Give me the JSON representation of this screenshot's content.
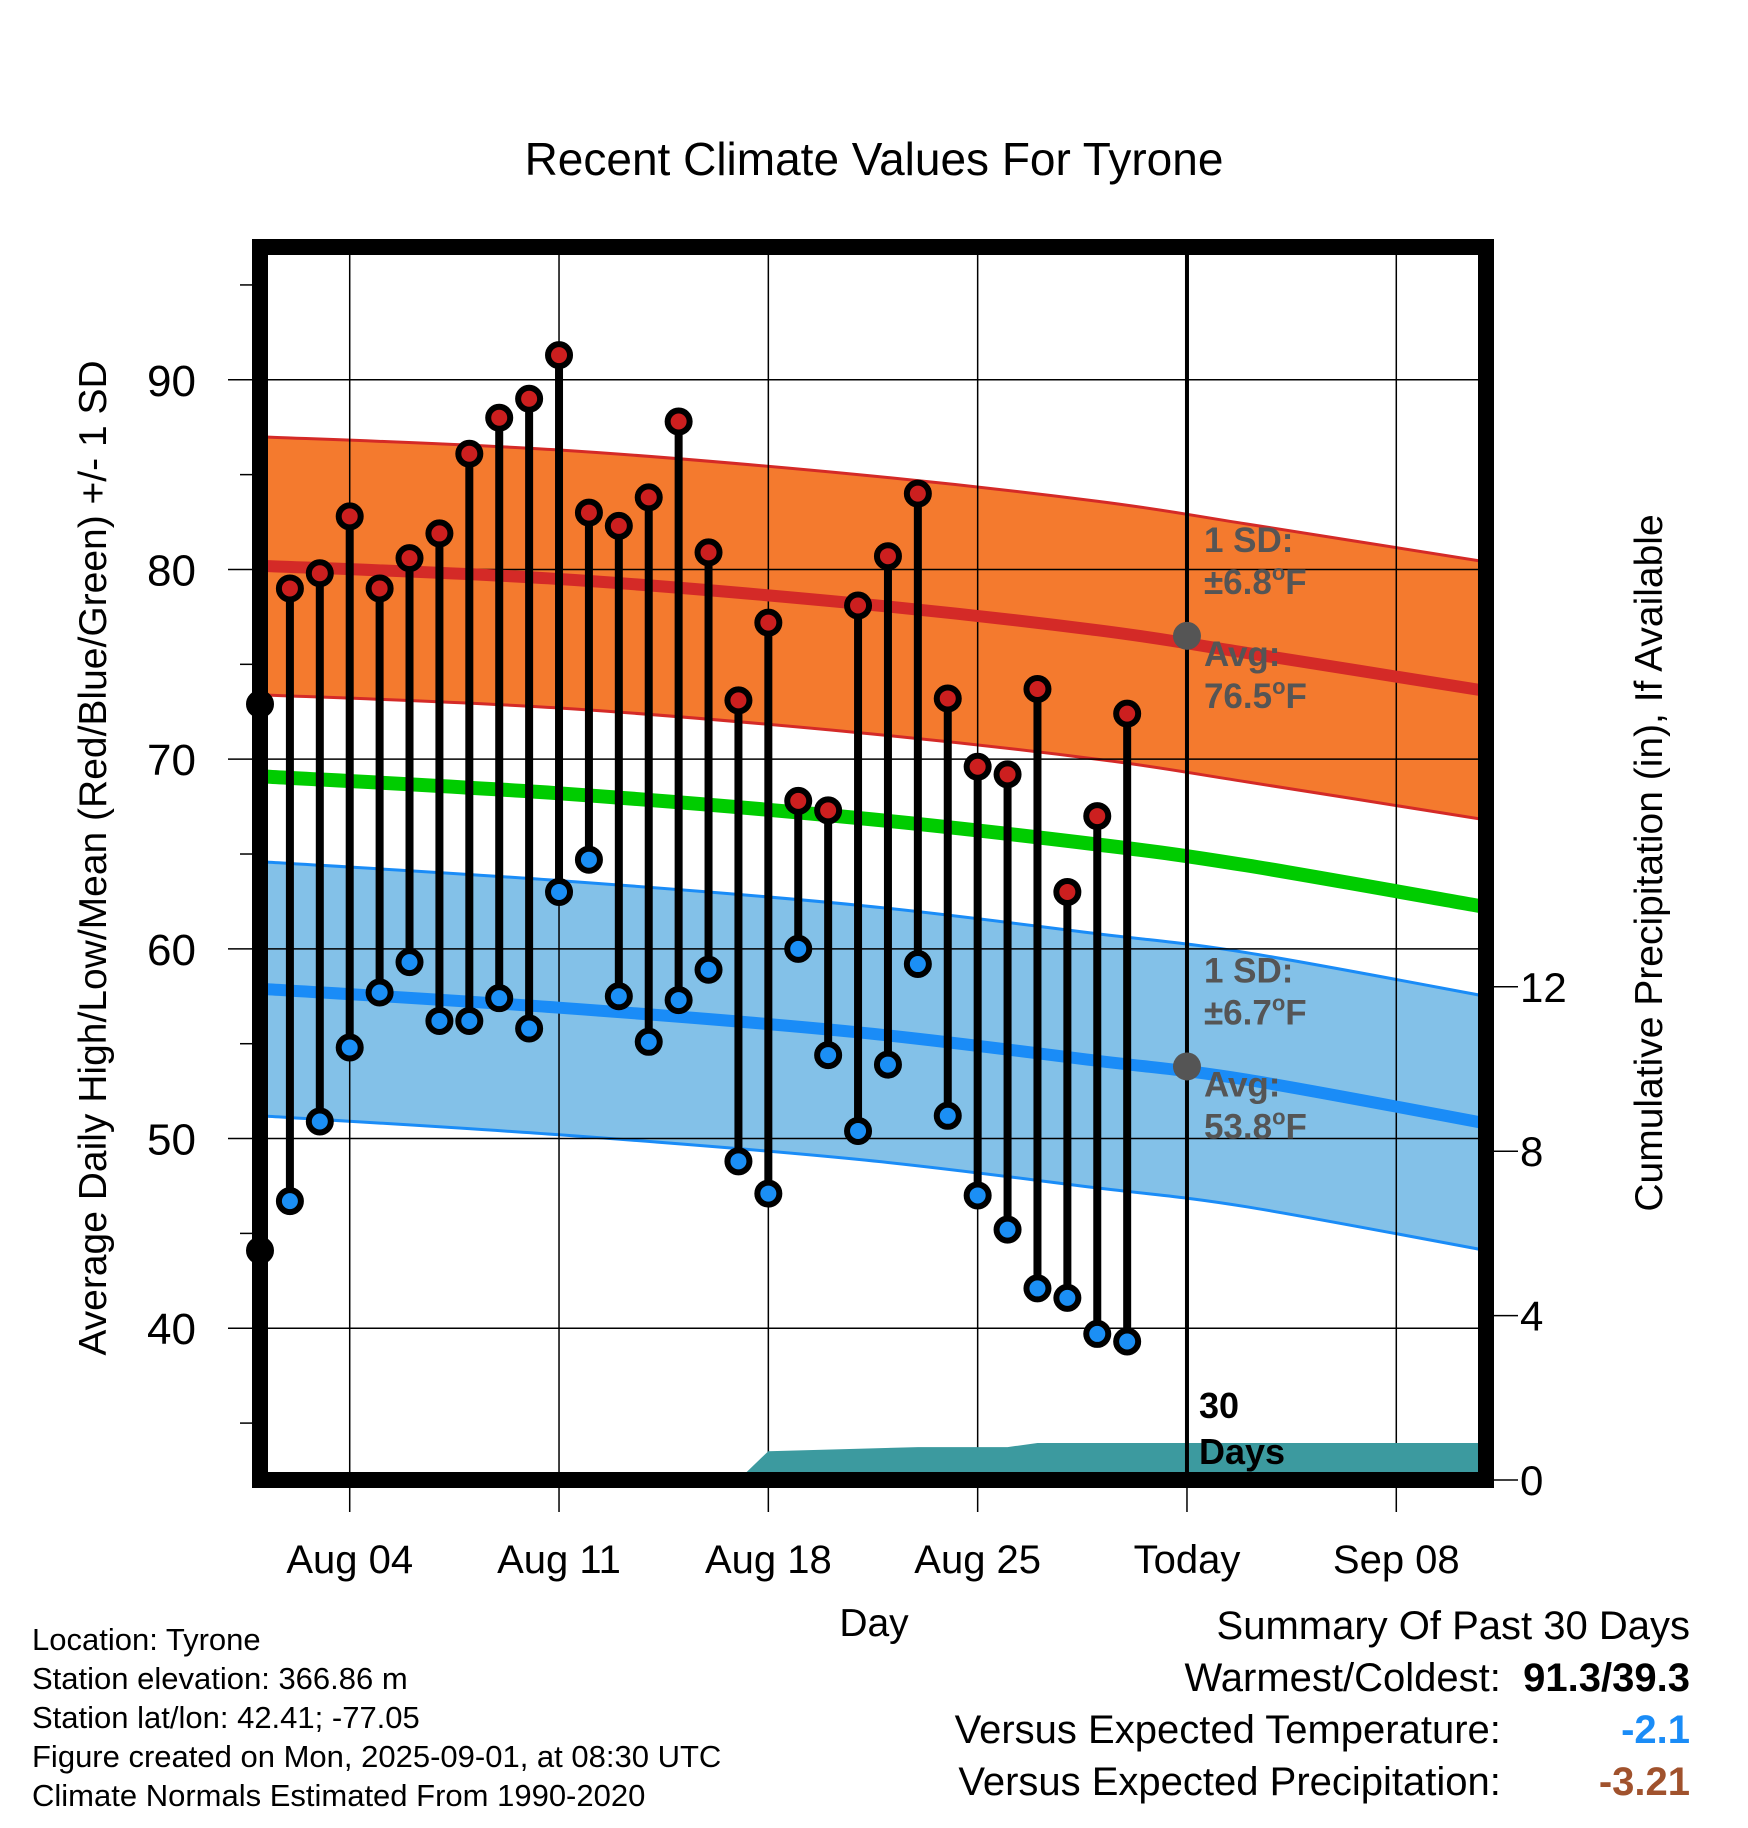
{
  "chart_data": {
    "type": "line",
    "title": "Recent Climate Values For Tyrone",
    "xlabel": "Day",
    "ylabel": "Average Daily High/Low/Mean (Red/Blue/Green) +/- 1 SD",
    "y2label": "Cumulative Precipitation (in), If Available",
    "ylim": [
      32,
      97
    ],
    "y2lim": [
      0,
      30
    ],
    "yticks": [
      40,
      50,
      60,
      70,
      80,
      90
    ],
    "y2ticks": [
      0,
      4,
      8,
      12
    ],
    "x_start": "2025-08-01",
    "x_end": "2025-09-11",
    "x_ticks": [
      {
        "date": "2025-08-04",
        "label": "Aug 04"
      },
      {
        "date": "2025-08-11",
        "label": "Aug 11"
      },
      {
        "date": "2025-08-18",
        "label": "Aug 18"
      },
      {
        "date": "2025-08-25",
        "label": "Aug 25"
      },
      {
        "date": "2025-09-01",
        "label": "Today"
      },
      {
        "date": "2025-09-08",
        "label": "Sep 08"
      }
    ],
    "today": "2025-09-01",
    "today_label": [
      "30",
      "Days"
    ],
    "normal_dates": [
      "2025-08-01",
      "2025-08-11",
      "2025-08-21",
      "2025-08-29",
      "2025-09-03",
      "2025-09-11"
    ],
    "normal_high": [
      80.2,
      79.5,
      78.2,
      76.8,
      75.6,
      73.6
    ],
    "normal_high_sd": 6.8,
    "normal_low": [
      57.9,
      56.9,
      55.6,
      54.1,
      53.1,
      50.8
    ],
    "normal_low_sd": 6.7,
    "normal_mean": [
      69.1,
      68.2,
      66.9,
      65.5,
      64.4,
      62.2
    ],
    "daily": [
      {
        "date": "2025-08-01",
        "high": 72.9,
        "low": 44.1
      },
      {
        "date": "2025-08-02",
        "high": 79.0,
        "low": 46.7
      },
      {
        "date": "2025-08-03",
        "high": 79.8,
        "low": 50.9
      },
      {
        "date": "2025-08-04",
        "high": 82.8,
        "low": 54.8
      },
      {
        "date": "2025-08-05",
        "high": 79.0,
        "low": 57.7
      },
      {
        "date": "2025-08-06",
        "high": 80.6,
        "low": 59.3
      },
      {
        "date": "2025-08-07",
        "high": 81.9,
        "low": 56.2
      },
      {
        "date": "2025-08-08",
        "high": 86.1,
        "low": 56.2
      },
      {
        "date": "2025-08-09",
        "high": 88.0,
        "low": 57.4
      },
      {
        "date": "2025-08-10",
        "high": 89.0,
        "low": 55.8
      },
      {
        "date": "2025-08-11",
        "high": 91.3,
        "low": 63.0
      },
      {
        "date": "2025-08-12",
        "high": 83.0,
        "low": 64.7
      },
      {
        "date": "2025-08-13",
        "high": 82.3,
        "low": 57.5
      },
      {
        "date": "2025-08-14",
        "high": 83.8,
        "low": 55.1
      },
      {
        "date": "2025-08-15",
        "high": 87.8,
        "low": 57.3
      },
      {
        "date": "2025-08-16",
        "high": 80.9,
        "low": 58.9
      },
      {
        "date": "2025-08-17",
        "high": 73.1,
        "low": 48.8
      },
      {
        "date": "2025-08-18",
        "high": 77.2,
        "low": 47.1
      },
      {
        "date": "2025-08-19",
        "high": 67.8,
        "low": 60.0
      },
      {
        "date": "2025-08-20",
        "high": 67.3,
        "low": 54.4
      },
      {
        "date": "2025-08-21",
        "high": 78.1,
        "low": 50.4
      },
      {
        "date": "2025-08-22",
        "high": 80.7,
        "low": 53.9
      },
      {
        "date": "2025-08-23",
        "high": 84.0,
        "low": 59.2
      },
      {
        "date": "2025-08-24",
        "high": 73.2,
        "low": 51.2
      },
      {
        "date": "2025-08-25",
        "high": 69.6,
        "low": 47.0
      },
      {
        "date": "2025-08-26",
        "high": 69.2,
        "low": 45.2
      },
      {
        "date": "2025-08-27",
        "high": 73.7,
        "low": 42.1
      },
      {
        "date": "2025-08-28",
        "high": 63.0,
        "low": 41.6
      },
      {
        "date": "2025-08-29",
        "high": 67.0,
        "low": 39.7
      },
      {
        "date": "2025-08-30",
        "high": 72.4,
        "low": 39.3
      }
    ],
    "precip_cumulative": [
      {
        "date": "2025-08-17",
        "value": 0.0
      },
      {
        "date": "2025-08-18",
        "value": 0.7
      },
      {
        "date": "2025-08-23",
        "value": 0.8
      },
      {
        "date": "2025-08-26",
        "value": 0.8
      },
      {
        "date": "2025-08-27",
        "value": 0.9
      },
      {
        "date": "2025-09-11",
        "value": 0.9
      }
    ],
    "high_annotation": {
      "sd": "1 SD:",
      "sd_value": "±6.8",
      "avg": "Avg:",
      "avg_value": "76.5",
      "unit": "F",
      "avg_num": 76.5
    },
    "low_annotation": {
      "sd": "1 SD:",
      "sd_value": "±6.7",
      "avg": "Avg:",
      "avg_value": "53.8",
      "unit": "F",
      "avg_num": 53.8
    },
    "colors": {
      "high_band": "#f47a2e",
      "high_line": "#d42a27",
      "low_band": "#83c1e8",
      "low_line": "#1a8cf7",
      "mean_line": "#00cc00",
      "precip": "#3c9a9f",
      "high_marker": "#cc1f1f",
      "low_marker": "#1b8ff5",
      "annotation": "#555555"
    }
  },
  "info": {
    "location": "Location: Tyrone",
    "elevation": "Station elevation: 366.86 m",
    "latlon": "Station lat/lon: 42.41; -77.05",
    "created": "Figure created on Mon, 2025-09-01, at 08:30 UTC",
    "normals": "Climate Normals Estimated From 1990-2020"
  },
  "summary": {
    "title": "Summary Of Past 30 Days",
    "warm_cold_label": "Warmest/Coldest:",
    "warm_cold_value": "91.3/39.3",
    "temp_label": "Versus Expected Temperature:",
    "temp_value": "-2.1",
    "temp_color": "#1a8cf7",
    "precip_label": "Versus Expected Precipitation:",
    "precip_value": "-3.21",
    "precip_color": "#a0522d"
  }
}
